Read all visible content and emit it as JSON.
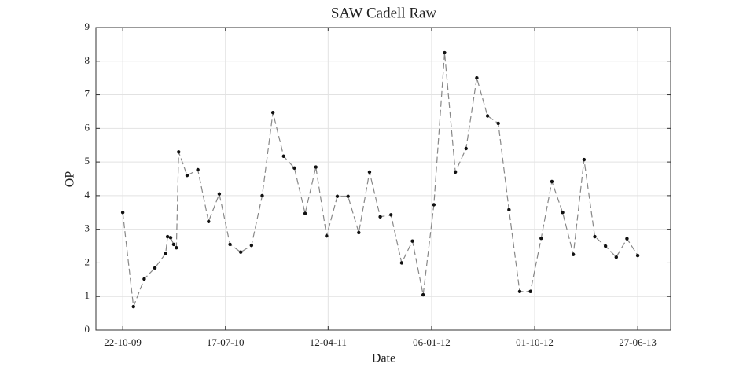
{
  "chart_data": {
    "type": "line",
    "title": "SAW Cadell Raw",
    "x_label": "Date",
    "y_label": "OP",
    "x": [
      "2009-10-22",
      "2009-11-19",
      "2009-12-17",
      "2010-01-14",
      "2010-02-11",
      "2010-02-16",
      "2010-02-24",
      "2010-03-04",
      "2010-03-11",
      "2010-03-17",
      "2010-04-08",
      "2010-05-06",
      "2010-06-03",
      "2010-07-01",
      "2010-07-29",
      "2010-08-26",
      "2010-09-23",
      "2010-10-21",
      "2010-11-18",
      "2010-12-16",
      "2011-01-13",
      "2011-02-10",
      "2011-03-10",
      "2011-04-07",
      "2011-05-05",
      "2011-06-02",
      "2011-06-30",
      "2011-07-28",
      "2011-08-25",
      "2011-09-22",
      "2011-10-20",
      "2011-11-17",
      "2011-12-15",
      "2012-01-12",
      "2012-02-09",
      "2012-03-08",
      "2012-04-05",
      "2012-05-03",
      "2012-05-31",
      "2012-06-28",
      "2012-07-26",
      "2012-08-23",
      "2012-09-20",
      "2012-10-18",
      "2012-11-15",
      "2012-12-13",
      "2013-01-10",
      "2013-02-07",
      "2013-03-07",
      "2013-04-04",
      "2013-05-02",
      "2013-05-30",
      "2013-06-27"
    ],
    "series": [
      {
        "name": "OP",
        "color": "#888888",
        "marker_color": "#111111",
        "values": [
          3.5,
          0.7,
          1.52,
          1.85,
          2.28,
          2.78,
          2.75,
          2.55,
          2.45,
          5.3,
          4.6,
          4.77,
          3.23,
          4.05,
          2.55,
          2.32,
          2.52,
          4.0,
          6.47,
          5.17,
          4.82,
          3.47,
          4.85,
          2.8,
          3.98,
          3.98,
          2.9,
          4.7,
          3.37,
          3.43,
          2.0,
          2.65,
          1.05,
          3.73,
          8.25,
          4.7,
          5.4,
          7.5,
          6.37,
          6.15,
          3.58,
          1.15,
          1.15,
          2.73,
          4.42,
          3.5,
          2.25,
          5.07,
          2.78,
          2.5,
          2.17,
          2.72,
          2.22
        ]
      }
    ],
    "xlim": [
      "2009-08-13",
      "2013-09-21"
    ],
    "xticks": [
      {
        "value": "2009-10-22",
        "label": "22-10-09"
      },
      {
        "value": "2010-07-17",
        "label": "17-07-10"
      },
      {
        "value": "2011-04-11",
        "label": "12-04-11"
      },
      {
        "value": "2012-01-06",
        "label": "06-01-12"
      },
      {
        "value": "2012-10-01",
        "label": "01-10-12"
      },
      {
        "value": "2013-06-27",
        "label": "27-06-13"
      }
    ],
    "ylim": [
      0,
      9
    ],
    "yticks": [
      0,
      1,
      2,
      3,
      4,
      5,
      6,
      7,
      8,
      9
    ],
    "grid": true
  }
}
